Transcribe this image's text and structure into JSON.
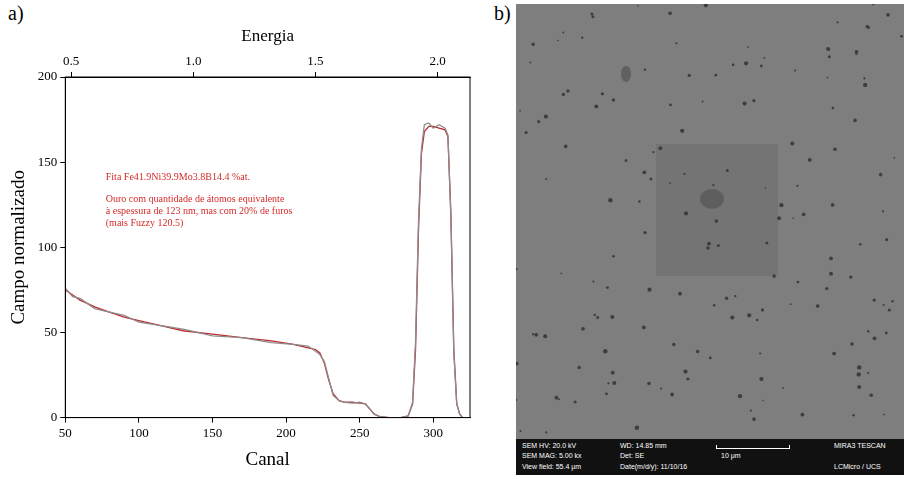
{
  "chart_data": {
    "type": "line",
    "x_label": "Canal",
    "y_label": "Campo normalizado",
    "xlim": [
      50,
      325
    ],
    "xticks": [
      50,
      100,
      150,
      200,
      250,
      300
    ],
    "ylim": [
      0,
      200
    ],
    "yticks": [
      0,
      50,
      100,
      150,
      200
    ],
    "top_axis": {
      "label": "Energia",
      "xlim": [
        0.476,
        2.133
      ],
      "xticks": [
        0.5,
        {
          "value": 1,
          "label": "1.0"
        },
        1.5,
        {
          "value": 2,
          "label": "2.0"
        }
      ]
    },
    "grid": false,
    "x": [
      50,
      55,
      60,
      70,
      80,
      90,
      100,
      115,
      130,
      150,
      170,
      190,
      205,
      215,
      220,
      223,
      226,
      229,
      232,
      236,
      240,
      245,
      250,
      254,
      257,
      260,
      264,
      270,
      278,
      283,
      286,
      288,
      290,
      292,
      294,
      297,
      300,
      304,
      308,
      310,
      312,
      314,
      316,
      318,
      320,
      325
    ],
    "series": [
      {
        "color": "#8c8c8c",
        "line_style": "solid",
        "values": [
          76,
          71,
          70,
          64,
          62,
          60,
          56,
          54,
          52,
          48,
          47,
          44,
          43,
          42,
          39,
          37,
          33,
          23,
          13,
          10,
          9,
          8.5,
          9,
          8,
          5,
          2,
          0.5,
          0,
          0,
          1,
          9,
          45,
          115,
          158,
          172,
          173,
          170,
          172,
          170,
          166,
          118,
          38,
          8,
          2,
          0,
          0
        ]
      },
      {
        "color": "#c0282d",
        "line_style": "solid",
        "values": [
          75,
          72,
          69,
          65,
          62,
          59,
          57,
          54,
          51,
          49,
          47,
          45,
          43,
          41,
          40,
          38,
          32,
          22,
          14,
          10,
          9,
          9,
          8.5,
          8,
          5,
          2,
          0.5,
          0,
          0,
          1,
          8,
          40,
          110,
          155,
          168,
          171,
          171,
          170,
          169,
          165,
          120,
          40,
          8,
          2,
          0,
          0
        ]
      }
    ],
    "annotations": [
      {
        "color": "#d42a2a",
        "lines": [
          "Fita Fe41.9Ni39.9Mo3.8B14.4 %at."
        ]
      },
      {
        "color": "#d42a2a",
        "lines": [
          "Ouro com quantidade de átomos equivalente",
          "à espessura de 123 nm, mas com 20% de furos",
          "(mais Fuzzy 120.5)"
        ]
      }
    ]
  },
  "panel_labels": [
    "a)",
    "b)"
  ],
  "sem_image": {
    "info_bar": {
      "hv": "SEM HV: 20.0 kV",
      "wd": "WD: 14.85 mm",
      "instrument": "MIRA3 TESCAN",
      "mag": "SEM MAG: 5.00 kx",
      "det": "Det: SE",
      "scale": "10 μm",
      "view_field": "View field: 55.4 µm",
      "date": "Date(m/d/y): 11/10/16",
      "lab": "LCMicro / UCS"
    }
  }
}
